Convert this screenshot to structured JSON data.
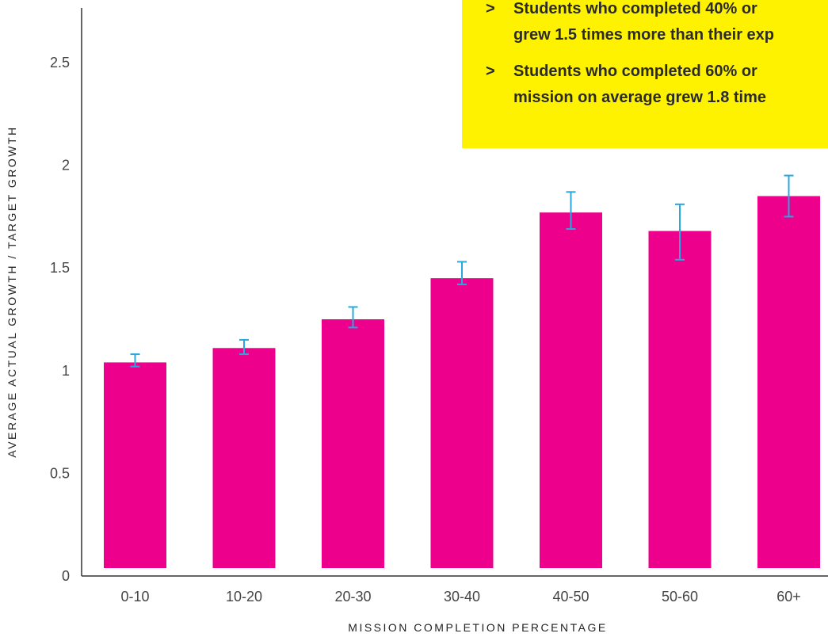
{
  "chart_data": {
    "type": "bar",
    "categories": [
      "0-10",
      "10-20",
      "20-30",
      "30-40",
      "40-50",
      "50-60",
      "60+"
    ],
    "values": [
      1.04,
      1.11,
      1.25,
      1.45,
      1.77,
      1.68,
      1.85
    ],
    "error_bars": {
      "upper": [
        1.08,
        1.15,
        1.31,
        1.53,
        1.87,
        1.81,
        1.95
      ],
      "lower": [
        1.02,
        1.08,
        1.21,
        1.42,
        1.69,
        1.54,
        1.75
      ]
    },
    "xlabel": "MISSION COMPLETION PERCENTAGE",
    "ylabel": "AVERAGE ACTUAL GROWTH / TARGET GROWTH",
    "ylim": [
      0,
      2.75
    ],
    "yticks": [
      0,
      0.5,
      1,
      1.5,
      2,
      2.5
    ],
    "ytick_labels": [
      "0",
      "0.5",
      "1",
      "1.5",
      "2",
      "2.5"
    ],
    "grid": false,
    "colors": {
      "bar": "#EC008C",
      "error_bar": "#29A8E0",
      "callout_bg": "#FFF200",
      "axis": "#333333"
    }
  },
  "callout": {
    "items": [
      {
        "marker": ">",
        "lines": [
          "Students who completed 40% or",
          "grew 1.5 times more than their exp"
        ]
      },
      {
        "marker": ">",
        "lines": [
          "Students who completed 60% or",
          "mission on average grew 1.8 time"
        ]
      }
    ]
  }
}
